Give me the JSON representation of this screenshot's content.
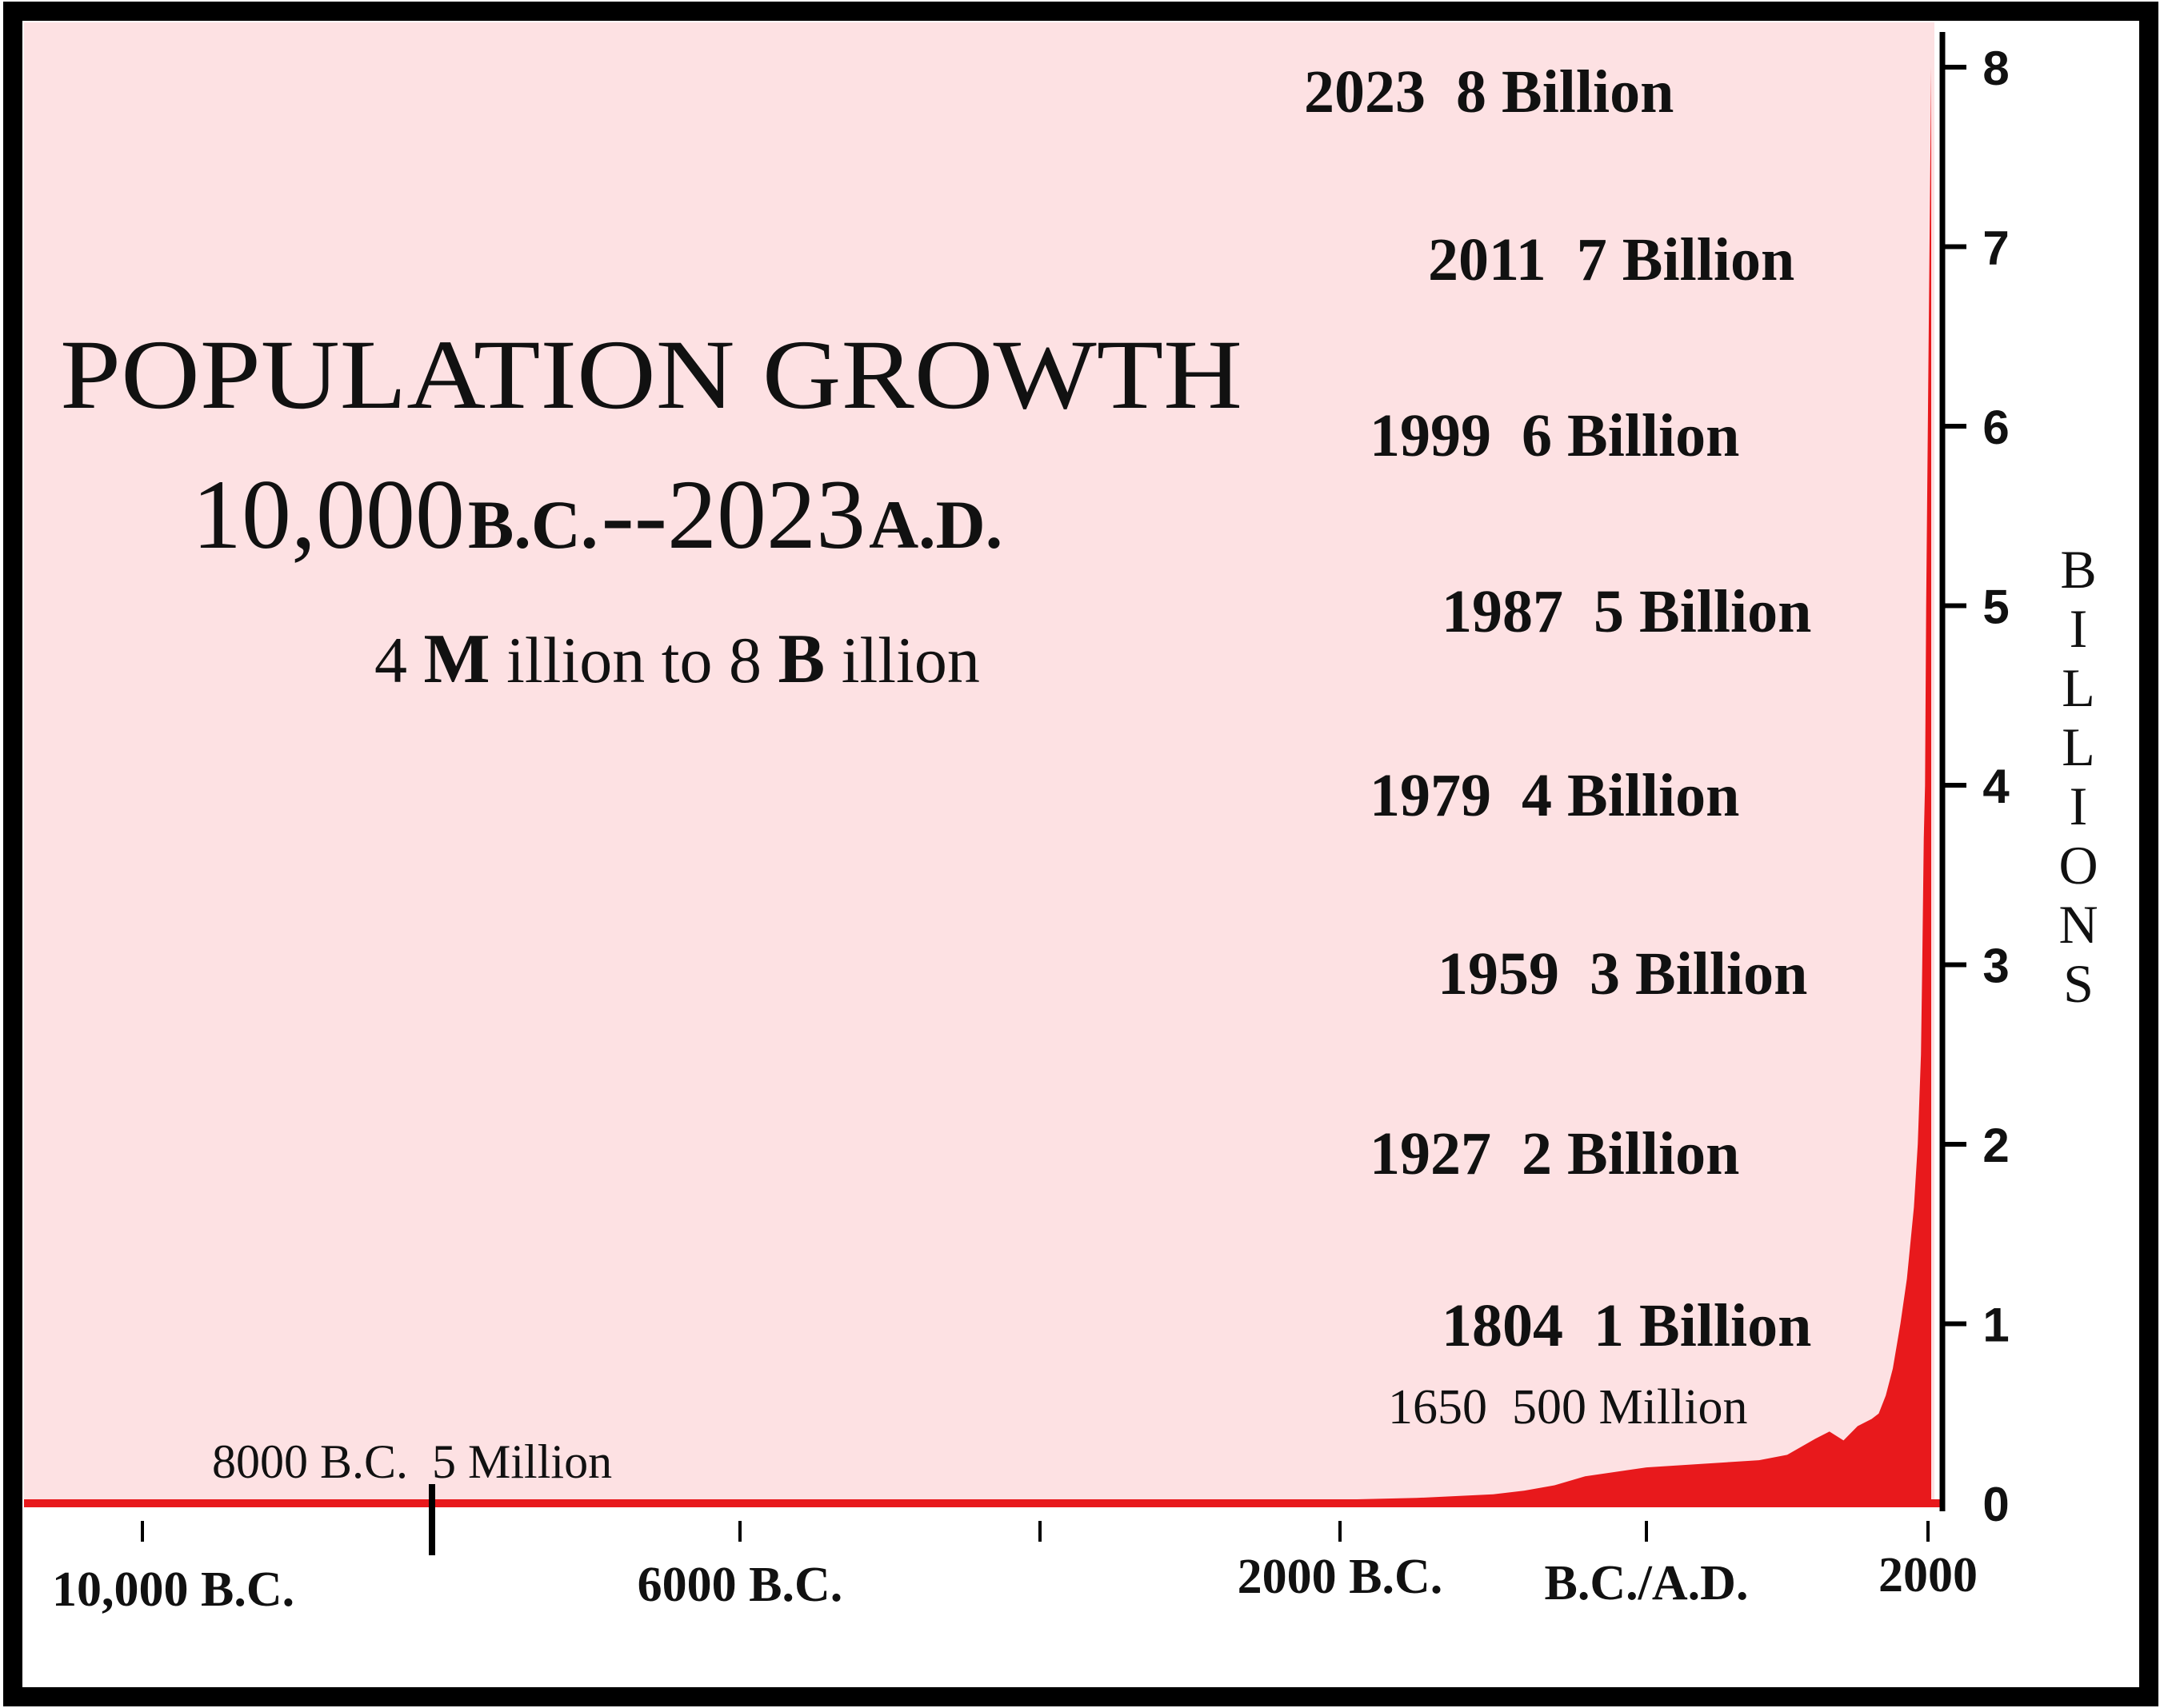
{
  "chart_data": {
    "type": "area",
    "title": "POPULATION GROWTH",
    "subtitle": {
      "part1": "10,000",
      "part2": "B.C.",
      "part3": "--2023",
      "part4": "A.D."
    },
    "caption": {
      "part1": "4",
      "part2": "M",
      "part3": "illion to 8 ",
      "part4": "B",
      "part5": "illion"
    },
    "ylabel": "BILLIONS",
    "ylim": [
      0,
      8.3
    ],
    "xlim": [
      -10000,
      2023
    ],
    "y_ticks": [
      "0",
      "1",
      "2",
      "3",
      "4",
      "5",
      "6",
      "7",
      "8"
    ],
    "x_tick_labels": [
      {
        "x": -10000,
        "label": "10,000 B.C."
      },
      {
        "x": -6000,
        "label": "6000 B.C."
      },
      {
        "x": -2000,
        "label": "2000 B.C."
      },
      {
        "x": 0,
        "label": "B.C./A.D."
      },
      {
        "x": 2000,
        "label": "2000"
      }
    ],
    "x_ticks_minor": [
      -10000,
      -6000,
      -4000,
      -2000,
      0,
      2000
    ],
    "x_tick_major": -8000,
    "annotations": [
      {
        "label": "2023  8 Billion",
        "year": 2023,
        "value": 8
      },
      {
        "label": "2011  7 Billion",
        "year": 2011,
        "value": 7
      },
      {
        "label": "1999  6 Billion",
        "year": 1999,
        "value": 6
      },
      {
        "label": "1987  5 Billion",
        "year": 1987,
        "value": 5
      },
      {
        "label": "1979  4 Billion",
        "year": 1979,
        "value": 4
      },
      {
        "label": "1959  3 Billion",
        "year": 1959,
        "value": 3
      },
      {
        "label": "1927  2 Billion",
        "year": 1927,
        "value": 2
      },
      {
        "label": "1804  1 Billion",
        "year": 1804,
        "value": 1
      },
      {
        "label": "1650  500 Million",
        "year": 1650,
        "value": 0.5
      },
      {
        "label": "8000 B.C.  5 Million",
        "year": -8000,
        "value": 0.005
      }
    ],
    "series": [
      {
        "x": [
          -10000,
          -8000,
          -6000,
          -4000,
          -3000,
          -2000,
          -1500,
          -1000,
          -800,
          -600,
          -400,
          0,
          400,
          800,
          1000,
          1200,
          1300,
          1400,
          1500,
          1600,
          1650,
          1700,
          1750,
          1804,
          1850,
          1900,
          1927,
          1950,
          1959,
          1970,
          1979,
          1987,
          1999,
          2011,
          2023
        ],
        "y": [
          0.004,
          0.005,
          0.007,
          0.01,
          0.014,
          0.02,
          0.03,
          0.05,
          0.07,
          0.1,
          0.15,
          0.2,
          0.22,
          0.24,
          0.27,
          0.36,
          0.4,
          0.35,
          0.43,
          0.47,
          0.5,
          0.6,
          0.75,
          1,
          1.25,
          1.65,
          2,
          2.5,
          3,
          3.7,
          4,
          5,
          6,
          7,
          8
        ]
      }
    ]
  },
  "colors": {
    "plot_background": "#fde1e3",
    "area_fill": "#e8191c",
    "baseline": "#e8191c",
    "border": "#000000",
    "text": "#111111"
  }
}
